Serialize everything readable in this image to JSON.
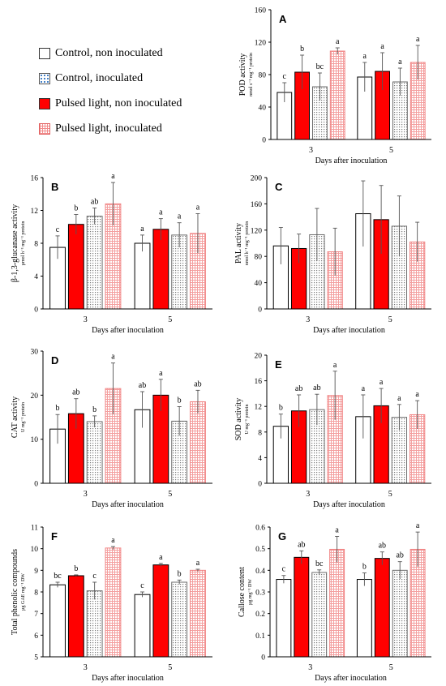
{
  "legend": {
    "items": [
      {
        "label": "Control, non inoculated",
        "pattern": "open"
      },
      {
        "label": "Control, inoculated",
        "pattern": "dots"
      },
      {
        "label": "Pulsed light, non inoculated",
        "pattern": "solid"
      },
      {
        "label": "Pulsed light, inoculated",
        "pattern": "pink"
      }
    ]
  },
  "colors": {
    "open": "#ffffff",
    "red": "#ff0000",
    "dots_stroke": "#6b6b6b",
    "pink_stroke": "#f08080"
  },
  "chart_data": [
    {
      "type": "bar",
      "panel": "A",
      "ylabel": "POD activity",
      "ylabel_sub": "nmol s⁻¹ mg⁻¹ protein",
      "xlabel": "Days after inoculation",
      "categories": [
        "3",
        "5"
      ],
      "ylim": [
        0,
        160
      ],
      "yticks": [
        0,
        40,
        80,
        120,
        160
      ],
      "series": [
        {
          "pattern": "open",
          "values": [
            58,
            77
          ],
          "errors": [
            12,
            18
          ],
          "letters": [
            "c",
            "a"
          ]
        },
        {
          "pattern": "solid",
          "values": [
            83,
            84
          ],
          "errors": [
            21,
            23
          ],
          "letters": [
            "b",
            "a"
          ]
        },
        {
          "pattern": "dots",
          "values": [
            65,
            71
          ],
          "errors": [
            17,
            17
          ],
          "letters": [
            "bc",
            "a"
          ]
        },
        {
          "pattern": "pink",
          "values": [
            109,
            95
          ],
          "errors": [
            4,
            21
          ],
          "letters": [
            "a",
            "a"
          ]
        }
      ]
    },
    {
      "type": "bar",
      "panel": "B",
      "ylabel": "β-1,3-glucanase activity",
      "ylabel_sub": "µmol h⁻¹ mg⁻¹ protein",
      "xlabel": "Days after inoculation",
      "categories": [
        "3",
        "5"
      ],
      "ylim": [
        0,
        16
      ],
      "yticks": [
        0,
        4,
        8,
        12,
        16
      ],
      "series": [
        {
          "pattern": "open",
          "values": [
            7.5,
            8.0
          ],
          "errors": [
            1.4,
            1.0
          ],
          "letters": [
            "c",
            "a"
          ]
        },
        {
          "pattern": "solid",
          "values": [
            10.3,
            9.7
          ],
          "errors": [
            1.2,
            1.3
          ],
          "letters": [
            "b",
            "a"
          ]
        },
        {
          "pattern": "dots",
          "values": [
            11.3,
            9.0
          ],
          "errors": [
            1.0,
            1.5
          ],
          "letters": [
            "ab",
            "a"
          ]
        },
        {
          "pattern": "pink",
          "values": [
            12.8,
            9.2
          ],
          "errors": [
            2.6,
            2.4
          ],
          "letters": [
            "a",
            "a"
          ]
        }
      ]
    },
    {
      "type": "bar",
      "panel": "C",
      "ylabel": "PAL activity",
      "ylabel_sub": "nmol h⁻¹ mg⁻¹ protein",
      "xlabel": "Days after inoculation",
      "categories": [
        "3",
        "5"
      ],
      "ylim": [
        0,
        200
      ],
      "yticks": [
        0,
        40,
        80,
        120,
        160,
        200
      ],
      "series": [
        {
          "pattern": "open",
          "values": [
            96,
            145
          ],
          "errors": [
            28,
            50
          ],
          "letters": [
            "",
            ""
          ]
        },
        {
          "pattern": "solid",
          "values": [
            92,
            136
          ],
          "errors": [
            22,
            52
          ],
          "letters": [
            "",
            ""
          ]
        },
        {
          "pattern": "dots",
          "values": [
            113,
            126
          ],
          "errors": [
            40,
            46
          ],
          "letters": [
            "",
            ""
          ]
        },
        {
          "pattern": "pink",
          "values": [
            87,
            102
          ],
          "errors": [
            36,
            30
          ],
          "letters": [
            "",
            ""
          ]
        }
      ]
    },
    {
      "type": "bar",
      "panel": "D",
      "ylabel": "CAT activity",
      "ylabel_sub": "U mg⁻¹ protein",
      "xlabel": "Days after inoculation",
      "categories": [
        "3",
        "5"
      ],
      "ylim": [
        0,
        30
      ],
      "yticks": [
        0,
        10,
        20,
        30
      ],
      "series": [
        {
          "pattern": "open",
          "values": [
            12.3,
            16.7
          ],
          "errors": [
            3.3,
            4.1
          ],
          "letters": [
            "b",
            "ab"
          ]
        },
        {
          "pattern": "solid",
          "values": [
            15.8,
            20.0
          ],
          "errors": [
            3.4,
            3.6
          ],
          "letters": [
            "ab",
            "a"
          ]
        },
        {
          "pattern": "dots",
          "values": [
            14.0,
            14.1
          ],
          "errors": [
            1.3,
            3.3
          ],
          "letters": [
            "b",
            "b"
          ]
        },
        {
          "pattern": "pink",
          "values": [
            21.5,
            18.5
          ],
          "errors": [
            5.8,
            2.6
          ],
          "letters": [
            "a",
            "ab"
          ]
        }
      ]
    },
    {
      "type": "bar",
      "panel": "E",
      "ylabel": "SOD activity",
      "ylabel_sub": "U mg⁻¹ protein",
      "xlabel": "Days after inoculation",
      "categories": [
        "3",
        "5"
      ],
      "ylim": [
        0,
        20
      ],
      "yticks": [
        0,
        4,
        8,
        12,
        16,
        20
      ],
      "series": [
        {
          "pattern": "open",
          "values": [
            8.9,
            10.4
          ],
          "errors": [
            1.9,
            3.4
          ],
          "letters": [
            "b",
            "a"
          ]
        },
        {
          "pattern": "solid",
          "values": [
            11.3,
            12.1
          ],
          "errors": [
            2.5,
            2.7
          ],
          "letters": [
            "ab",
            "a"
          ]
        },
        {
          "pattern": "dots",
          "values": [
            11.5,
            10.3
          ],
          "errors": [
            2.4,
            2.0
          ],
          "letters": [
            "ab",
            "a"
          ]
        },
        {
          "pattern": "pink",
          "values": [
            13.7,
            10.7
          ],
          "errors": [
            3.8,
            2.2
          ],
          "letters": [
            "a",
            "a"
          ]
        }
      ]
    },
    {
      "type": "bar",
      "panel": "F",
      "ylabel": "Total phenolic compounds",
      "ylabel_sub": "µg GAE mg⁻¹ DW",
      "xlabel": "Days after inoculation",
      "categories": [
        "3",
        "5"
      ],
      "ylim": [
        5,
        11
      ],
      "yticks": [
        5,
        6,
        7,
        8,
        9,
        10,
        11
      ],
      "series": [
        {
          "pattern": "open",
          "values": [
            8.33,
            7.88
          ],
          "errors": [
            0.12,
            0.12
          ],
          "letters": [
            "bc",
            "c"
          ]
        },
        {
          "pattern": "solid",
          "values": [
            8.75,
            9.25
          ],
          "errors": [
            0.04,
            0.07
          ],
          "letters": [
            "b",
            "a"
          ]
        },
        {
          "pattern": "dots",
          "values": [
            8.05,
            8.45
          ],
          "errors": [
            0.4,
            0.1
          ],
          "letters": [
            "c",
            "b"
          ]
        },
        {
          "pattern": "pink",
          "values": [
            10.03,
            9.0
          ],
          "errors": [
            0.07,
            0.05
          ],
          "letters": [
            "a",
            "a"
          ]
        }
      ]
    },
    {
      "type": "bar",
      "panel": "G",
      "ylabel": "Callose content",
      "ylabel_sub": "µg mg⁻¹ DW",
      "xlabel": "Days after inoculation",
      "categories": [
        "3",
        "5"
      ],
      "ylim": [
        0,
        0.6
      ],
      "yticks": [
        0,
        0.1,
        0.2,
        0.3,
        0.4,
        0.5,
        0.6
      ],
      "series": [
        {
          "pattern": "open",
          "values": [
            0.358,
            0.358
          ],
          "errors": [
            0.018,
            0.03
          ],
          "letters": [
            "c",
            "b"
          ]
        },
        {
          "pattern": "solid",
          "values": [
            0.46,
            0.455
          ],
          "errors": [
            0.03,
            0.03
          ],
          "letters": [
            "ab",
            "ab"
          ]
        },
        {
          "pattern": "dots",
          "values": [
            0.39,
            0.4
          ],
          "errors": [
            0.012,
            0.04
          ],
          "letters": [
            "bc",
            "ab"
          ]
        },
        {
          "pattern": "pink",
          "values": [
            0.497,
            0.497
          ],
          "errors": [
            0.06,
            0.08
          ],
          "letters": [
            "a",
            "a"
          ]
        }
      ]
    }
  ]
}
